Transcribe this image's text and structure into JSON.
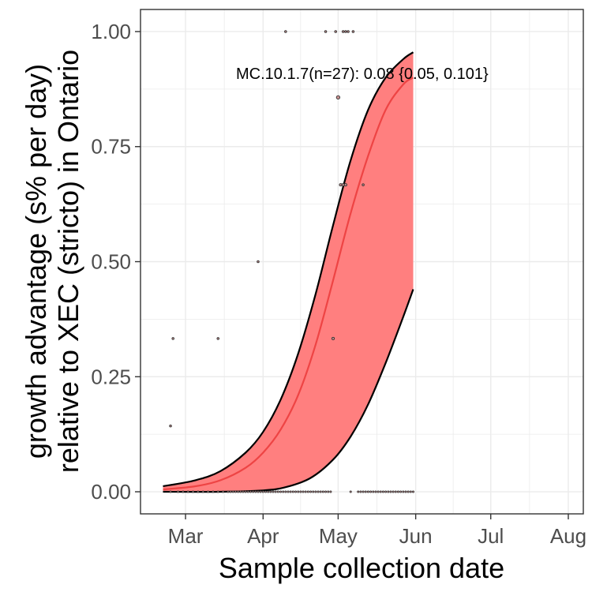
{
  "chart_data": {
    "type": "line",
    "xlabel": "Sample collection date",
    "ylabel_line1": "growth advantage (s% per day)",
    "ylabel_line2": "relative to XEC (stricto) in Ontario",
    "annotation": "MC.10.1.7(n=27): 0.08 {0.05, 0.101}",
    "x_type": "date",
    "xlim": [
      "2025-02-11",
      "2025-08-07"
    ],
    "ylim": [
      -0.048,
      1.048
    ],
    "x_ticks": [
      {
        "date": "2025-03-01",
        "label": "Mar"
      },
      {
        "date": "2025-04-01",
        "label": "Apr"
      },
      {
        "date": "2025-05-01",
        "label": "May"
      },
      {
        "date": "2025-06-01",
        "label": "Jun"
      },
      {
        "date": "2025-07-01",
        "label": "Jul"
      },
      {
        "date": "2025-08-01",
        "label": "Aug"
      }
    ],
    "y_ticks": [
      {
        "value": 0,
        "label": "0.00"
      },
      {
        "value": 0.25,
        "label": "0.25"
      },
      {
        "value": 0.5,
        "label": "0.50"
      },
      {
        "value": 0.75,
        "label": "0.75"
      },
      {
        "value": 1,
        "label": "1.00"
      }
    ],
    "grid": true,
    "colors": {
      "ribbon": "#ff7f7f",
      "fit_line": "#ee4444",
      "ci_line": "#000000",
      "points_fill": "#c89090",
      "points_stroke": "#333333",
      "grid": "#ebebeb",
      "panel_border": "#333333"
    },
    "series": [
      {
        "kind": "fit",
        "points": [
          {
            "x": "2025-02-20",
            "y": 0.005
          },
          {
            "x": "2025-03-05",
            "y": 0.012
          },
          {
            "x": "2025-03-15",
            "y": 0.025
          },
          {
            "x": "2025-03-25",
            "y": 0.052
          },
          {
            "x": "2025-04-01",
            "y": 0.085
          },
          {
            "x": "2025-04-08",
            "y": 0.135
          },
          {
            "x": "2025-04-15",
            "y": 0.21
          },
          {
            "x": "2025-04-22",
            "y": 0.32
          },
          {
            "x": "2025-04-29",
            "y": 0.46
          },
          {
            "x": "2025-05-06",
            "y": 0.605
          },
          {
            "x": "2025-05-13",
            "y": 0.73
          },
          {
            "x": "2025-05-20",
            "y": 0.83
          },
          {
            "x": "2025-05-27",
            "y": 0.885
          },
          {
            "x": "2025-05-31",
            "y": 0.9
          }
        ]
      },
      {
        "kind": "ci_upper",
        "points": [
          {
            "x": "2025-02-20",
            "y": 0.012
          },
          {
            "x": "2025-03-05",
            "y": 0.025
          },
          {
            "x": "2025-03-15",
            "y": 0.045
          },
          {
            "x": "2025-03-25",
            "y": 0.085
          },
          {
            "x": "2025-04-01",
            "y": 0.13
          },
          {
            "x": "2025-04-08",
            "y": 0.2
          },
          {
            "x": "2025-04-15",
            "y": 0.3
          },
          {
            "x": "2025-04-22",
            "y": 0.43
          },
          {
            "x": "2025-04-29",
            "y": 0.58
          },
          {
            "x": "2025-05-06",
            "y": 0.72
          },
          {
            "x": "2025-05-13",
            "y": 0.83
          },
          {
            "x": "2025-05-20",
            "y": 0.9
          },
          {
            "x": "2025-05-27",
            "y": 0.94
          },
          {
            "x": "2025-05-31",
            "y": 0.955
          }
        ]
      },
      {
        "kind": "ci_lower",
        "points": [
          {
            "x": "2025-02-20",
            "y": 0.0
          },
          {
            "x": "2025-03-15",
            "y": 0.0
          },
          {
            "x": "2025-04-01",
            "y": 0.003
          },
          {
            "x": "2025-04-10",
            "y": 0.01
          },
          {
            "x": "2025-04-20",
            "y": 0.03
          },
          {
            "x": "2025-04-29",
            "y": 0.07
          },
          {
            "x": "2025-05-06",
            "y": 0.12
          },
          {
            "x": "2025-05-13",
            "y": 0.19
          },
          {
            "x": "2025-05-20",
            "y": 0.28
          },
          {
            "x": "2025-05-27",
            "y": 0.38
          },
          {
            "x": "2025-05-31",
            "y": 0.44
          }
        ]
      }
    ],
    "observations": [
      {
        "x": "2025-02-23",
        "y": 0.143,
        "r": 1.3
      },
      {
        "x": "2025-02-24",
        "y": 0.333,
        "r": 1.3
      },
      {
        "x": "2025-03-14",
        "y": 0.333,
        "r": 1.3
      },
      {
        "x": "2025-03-30",
        "y": 0.5,
        "r": 1.3
      },
      {
        "x": "2025-04-10",
        "y": 1.0,
        "r": 1.3
      },
      {
        "x": "2025-04-26",
        "y": 1.0,
        "r": 1.3
      },
      {
        "x": "2025-04-30",
        "y": 1.0,
        "r": 1.3
      },
      {
        "x": "2025-05-03",
        "y": 1.0,
        "r": 1.3
      },
      {
        "x": "2025-05-04",
        "y": 1.0,
        "r": 1.3
      },
      {
        "x": "2025-05-05",
        "y": 1.0,
        "r": 1.3
      },
      {
        "x": "2025-05-07",
        "y": 1.0,
        "r": 1.3
      },
      {
        "x": "2025-05-01",
        "y": 0.857,
        "r": 2.2
      },
      {
        "x": "2025-05-02",
        "y": 0.667,
        "r": 1.6
      },
      {
        "x": "2025-05-03",
        "y": 0.667,
        "r": 1.6
      },
      {
        "x": "2025-05-04",
        "y": 0.667,
        "r": 1.6
      },
      {
        "x": "2025-05-11",
        "y": 0.667,
        "r": 1.3
      },
      {
        "x": "2025-04-29",
        "y": 0.333,
        "r": 1.6
      }
    ],
    "zero_observation_dates": [
      "2025-02-23",
      "2025-02-26",
      "2025-02-28",
      "2025-03-02",
      "2025-03-04",
      "2025-03-06",
      "2025-03-08",
      "2025-03-10",
      "2025-03-12",
      "2025-03-14",
      "2025-03-16",
      "2025-03-18",
      "2025-03-19",
      "2025-03-20",
      "2025-03-21",
      "2025-03-22",
      "2025-03-23",
      "2025-03-24",
      "2025-03-25",
      "2025-03-26",
      "2025-03-27",
      "2025-03-28",
      "2025-03-29",
      "2025-03-30",
      "2025-03-31",
      "2025-04-01",
      "2025-04-02",
      "2025-04-03",
      "2025-04-04",
      "2025-04-05",
      "2025-04-06",
      "2025-04-07",
      "2025-04-08",
      "2025-04-09",
      "2025-04-10",
      "2025-04-11",
      "2025-04-12",
      "2025-04-13",
      "2025-04-14",
      "2025-04-15",
      "2025-04-16",
      "2025-04-17",
      "2025-04-18",
      "2025-04-19",
      "2025-04-20",
      "2025-04-21",
      "2025-04-22",
      "2025-04-23",
      "2025-04-24",
      "2025-04-25",
      "2025-04-26",
      "2025-04-27",
      "2025-04-28",
      "2025-05-06",
      "2025-05-09",
      "2025-05-10",
      "2025-05-11",
      "2025-05-12",
      "2025-05-13",
      "2025-05-14",
      "2025-05-15",
      "2025-05-16",
      "2025-05-17",
      "2025-05-18",
      "2025-05-19",
      "2025-05-20",
      "2025-05-21",
      "2025-05-22",
      "2025-05-23",
      "2025-05-24",
      "2025-05-25",
      "2025-05-26",
      "2025-05-27",
      "2025-05-28",
      "2025-05-29",
      "2025-05-30",
      "2025-05-31"
    ]
  }
}
